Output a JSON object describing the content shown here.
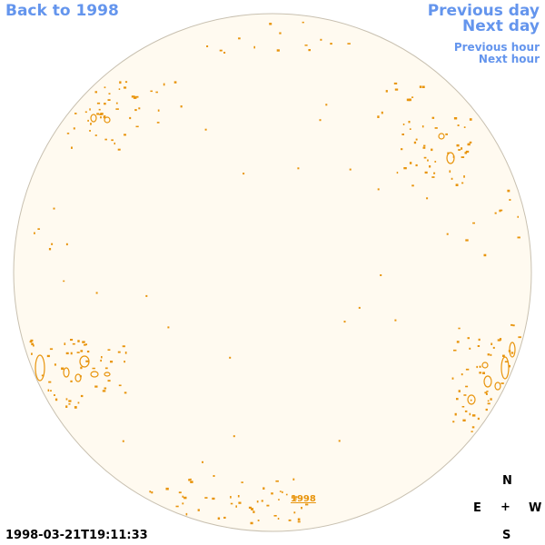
{
  "nav": {
    "back_label": "Back to 1998",
    "prev_day_label": "Previous day",
    "next_day_label": "Next day",
    "prev_hour_label": "Previous hour",
    "next_hour_label": "Next hour"
  },
  "timestamp": "1998-03-21T19:11:33",
  "year_label": "1998",
  "compass": {
    "north": "N",
    "east": "E",
    "center": "+",
    "west": "W",
    "south": "S"
  },
  "colors": {
    "link": "#6495ED",
    "disk_fill": "#FFFAF0",
    "disk_stroke": "#C8C0B0",
    "contour": "#E8940C"
  }
}
